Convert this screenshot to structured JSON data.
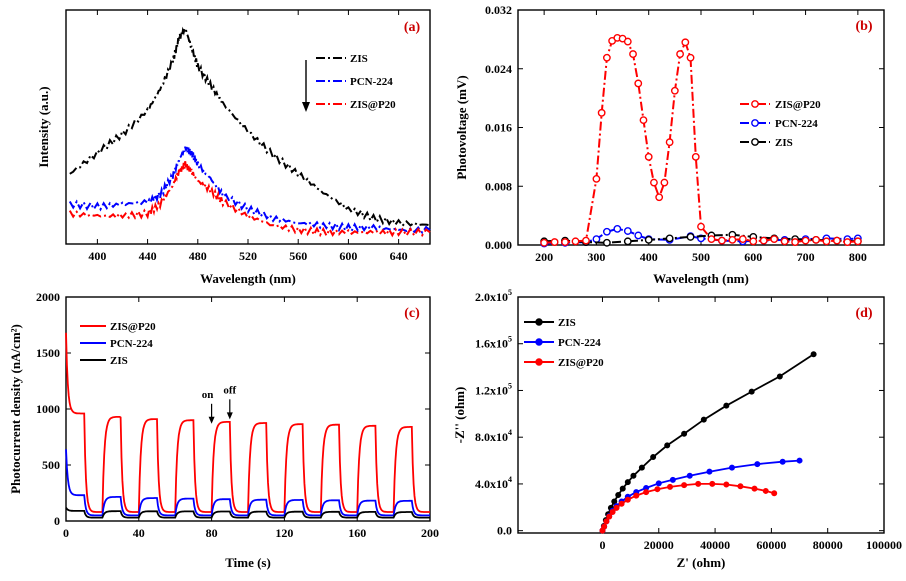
{
  "chart_data": [
    {
      "type": "line",
      "panel_label": "(a)",
      "xlabel": "Wavelength (nm)",
      "ylabel": "Intensity  (a.u.)",
      "xlim": [
        375,
        665
      ],
      "ylim": [
        0,
        100
      ],
      "xticks": [
        400,
        440,
        480,
        520,
        560,
        600,
        640
      ],
      "yticks_shown": false,
      "legend_position": "top-right",
      "legend_arrow": "down",
      "series": [
        {
          "name": "ZIS",
          "color": "#000000",
          "dash": "dash-dot",
          "x": [
            378,
            400,
            420,
            440,
            450,
            460,
            465,
            470,
            475,
            480,
            490,
            500,
            520,
            540,
            560,
            580,
            600,
            620,
            640,
            665
          ],
          "y": [
            30,
            39,
            47,
            57,
            66,
            78,
            88,
            92,
            84,
            76,
            68,
            60,
            48,
            38,
            30,
            22,
            15,
            11,
            9,
            8
          ]
        },
        {
          "name": "PCN-224",
          "color": "#0000ff",
          "dash": "dash-dot",
          "x": [
            378,
            400,
            420,
            440,
            450,
            460,
            465,
            470,
            475,
            480,
            490,
            500,
            520,
            540,
            560,
            580,
            600,
            620,
            640,
            665
          ],
          "y": [
            17,
            16,
            17,
            18,
            21,
            29,
            36,
            41,
            39,
            34,
            28,
            21,
            15,
            11,
            9,
            8,
            7,
            7,
            6,
            6
          ]
        },
        {
          "name": "ZIS@P20",
          "color": "#ff0000",
          "dash": "dash-dot",
          "x": [
            378,
            400,
            420,
            440,
            450,
            460,
            465,
            470,
            475,
            480,
            490,
            500,
            520,
            540,
            560,
            580,
            600,
            620,
            640,
            665
          ],
          "y": [
            13,
            12,
            12,
            13,
            17,
            25,
            31,
            34,
            31,
            27,
            23,
            18,
            12,
            8,
            6,
            5,
            5,
            5,
            5,
            5
          ]
        }
      ]
    },
    {
      "type": "line",
      "panel_label": "(b)",
      "xlabel": "Wavelength (nm)",
      "ylabel": "Photovoltage (mV)",
      "xlim": [
        150,
        850
      ],
      "ylim": [
        0,
        0.032
      ],
      "xticks": [
        200,
        300,
        400,
        500,
        600,
        700,
        800
      ],
      "yticks": [
        0.0,
        0.008,
        0.016,
        0.024,
        0.032
      ],
      "ytick_labels": [
        "0.000",
        "0.008",
        "0.016",
        "0.024",
        "0.032"
      ],
      "legend_position": "right",
      "series": [
        {
          "name": "ZIS@P20",
          "color": "#ff0000",
          "marker": "open-circle",
          "x": [
            200,
            220,
            240,
            260,
            280,
            300,
            310,
            320,
            330,
            340,
            350,
            360,
            370,
            380,
            390,
            400,
            410,
            420,
            430,
            440,
            450,
            460,
            470,
            480,
            490,
            500,
            520,
            540,
            560,
            580,
            600,
            620,
            640,
            660,
            680,
            700,
            720,
            740,
            760,
            780,
            800
          ],
          "y": [
            0.0003,
            0.0004,
            0.0004,
            0.0005,
            0.0006,
            0.009,
            0.018,
            0.0255,
            0.0278,
            0.0282,
            0.0281,
            0.0277,
            0.026,
            0.022,
            0.017,
            0.012,
            0.0085,
            0.0065,
            0.0085,
            0.014,
            0.021,
            0.026,
            0.0276,
            0.0255,
            0.012,
            0.0025,
            0.0008,
            0.0006,
            0.0007,
            0.0008,
            0.0005,
            0.0006,
            0.0008,
            0.0005,
            0.0004,
            0.0006,
            0.0007,
            0.0005,
            0.0006,
            0.0004,
            0.0005
          ]
        },
        {
          "name": "PCN-224",
          "color": "#0000ff",
          "marker": "open-circle",
          "x": [
            200,
            240,
            280,
            300,
            320,
            340,
            360,
            380,
            400,
            440,
            480,
            500,
            540,
            580,
            620,
            660,
            700,
            740,
            780,
            800
          ],
          "y": [
            0.0002,
            0.0003,
            0.0004,
            0.0008,
            0.0018,
            0.0022,
            0.0019,
            0.0013,
            0.0008,
            0.0007,
            0.0012,
            0.0009,
            0.0006,
            0.0005,
            0.0006,
            0.0007,
            0.0008,
            0.0009,
            0.0008,
            0.0009
          ]
        },
        {
          "name": "ZIS",
          "color": "#000000",
          "marker": "open-circle",
          "x": [
            200,
            240,
            280,
            320,
            360,
            400,
            440,
            480,
            520,
            560,
            600,
            640,
            680,
            720,
            760,
            800
          ],
          "y": [
            0.0005,
            0.0006,
            0.0004,
            0.0003,
            0.0005,
            0.0007,
            0.0009,
            0.0011,
            0.0013,
            0.0014,
            0.0011,
            0.0009,
            0.0008,
            0.0007,
            0.0006,
            0.0005
          ]
        }
      ]
    },
    {
      "type": "line",
      "panel_label": "(c)",
      "xlabel": "Time (s)",
      "ylabel": "Photocurrent density (nA/cm²)",
      "xlim": [
        0,
        200
      ],
      "ylim": [
        0,
        2000
      ],
      "xticks": [
        0,
        40,
        80,
        120,
        160,
        200
      ],
      "yticks": [
        0,
        500,
        1000,
        1500,
        2000
      ],
      "legend_position": "top-left",
      "annotations": [
        {
          "text": "on",
          "x": 80,
          "y": 850
        },
        {
          "text": "off",
          "x": 90,
          "y": 890
        }
      ],
      "light_period_s": 20,
      "light_on_duration_s": 10,
      "series": [
        {
          "name": "ZIS@P20",
          "color": "#ff0000",
          "initial_spike": 1680,
          "on_plateaus": [
            960,
            930,
            910,
            900,
            885,
            875,
            865,
            860,
            850,
            840
          ],
          "dark_level": 80
        },
        {
          "name": "PCN-224",
          "color": "#0000ff",
          "initial_spike": 640,
          "on_plateaus": [
            230,
            215,
            205,
            200,
            195,
            190,
            188,
            185,
            182,
            180
          ],
          "dark_level": 50
        },
        {
          "name": "ZIS",
          "color": "#000000",
          "initial_spike": 120,
          "on_plateaus": [
            90,
            88,
            87,
            86,
            85,
            84,
            83,
            82,
            81,
            80
          ],
          "dark_level": 30
        }
      ]
    },
    {
      "type": "line",
      "panel_label": "(d)",
      "xlabel": "Z' (ohm)",
      "ylabel": "-Z'' (ohm)",
      "xlim": [
        -30000,
        100000
      ],
      "ylim": [
        -2000,
        200000
      ],
      "xticks": [
        0,
        20000,
        40000,
        60000,
        80000,
        100000
      ],
      "yticks": [
        0,
        40000,
        80000,
        120000,
        160000,
        200000
      ],
      "ytick_labels": [
        {
          "mantissa": "0.0",
          "exp": ""
        },
        {
          "mantissa": "4.0x10",
          "exp": "4"
        },
        {
          "mantissa": "8.0x10",
          "exp": "4"
        },
        {
          "mantissa": "1.2x10",
          "exp": "5"
        },
        {
          "mantissa": "1.6x10",
          "exp": "5"
        },
        {
          "mantissa": "2.0x10",
          "exp": "5"
        }
      ],
      "legend_position": "top-left",
      "series": [
        {
          "name": "ZIS",
          "color": "#000000",
          "marker": "circle",
          "x": [
            0,
            500,
            1200,
            2000,
            3000,
            4200,
            5600,
            7200,
            9000,
            11000,
            14000,
            18000,
            23000,
            29000,
            36000,
            44000,
            53000,
            63000,
            75000
          ],
          "y": [
            0,
            4000,
            9000,
            14000,
            19500,
            25000,
            30500,
            36000,
            41500,
            47000,
            54000,
            63000,
            73000,
            83000,
            95000,
            107000,
            119000,
            132000,
            151000
          ]
        },
        {
          "name": "PCN-224",
          "color": "#0000ff",
          "marker": "circle",
          "x": [
            0,
            600,
            1400,
            2400,
            3600,
            5000,
            6800,
            9000,
            12000,
            15500,
            20000,
            25000,
            31000,
            38000,
            46000,
            55000,
            64000,
            70000
          ],
          "y": [
            0,
            3500,
            8000,
            12500,
            17000,
            21000,
            25000,
            29000,
            33000,
            36500,
            40500,
            43500,
            47000,
            50500,
            54000,
            57000,
            59000,
            60000
          ]
        },
        {
          "name": "ZIS@P20",
          "color": "#ff0000",
          "marker": "circle",
          "x": [
            0,
            600,
            1400,
            2400,
            3600,
            5000,
            6800,
            9000,
            12000,
            15500,
            19500,
            24000,
            29000,
            34000,
            39000,
            44000,
            49000,
            54000,
            58000,
            61000
          ],
          "y": [
            0,
            3500,
            8000,
            12000,
            16000,
            19500,
            23000,
            26500,
            30000,
            33000,
            35500,
            37500,
            39000,
            40000,
            40000,
            39500,
            38000,
            36000,
            34000,
            32000
          ]
        }
      ]
    }
  ]
}
